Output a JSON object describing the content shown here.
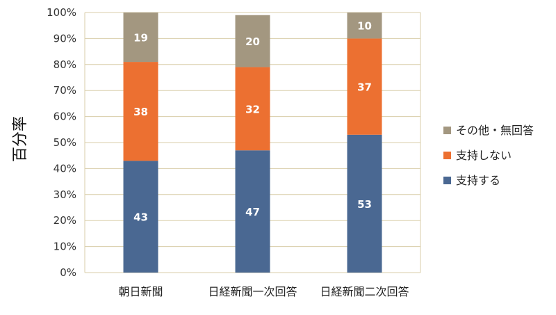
{
  "chart_data": {
    "type": "bar",
    "stacked": true,
    "percent_stacked": true,
    "ylabel": "百分率",
    "xlabel": "",
    "ylim": [
      0,
      100
    ],
    "yticks": [
      "0%",
      "10%",
      "20%",
      "30%",
      "40%",
      "50%",
      "60%",
      "70%",
      "80%",
      "90%",
      "100%"
    ],
    "categories": [
      "朝日新聞",
      "日経新聞一次回答",
      "日経新聞二次回答"
    ],
    "series": [
      {
        "name": "支持する",
        "color": "#4a6892",
        "values": [
          43,
          47,
          53
        ]
      },
      {
        "name": "支持しない",
        "color": "#ec7031",
        "values": [
          38,
          32,
          37
        ]
      },
      {
        "name": "その他・無回答",
        "color": "#a39780",
        "values": [
          19,
          20,
          10
        ]
      }
    ],
    "legend_position": "right",
    "grid": true
  }
}
